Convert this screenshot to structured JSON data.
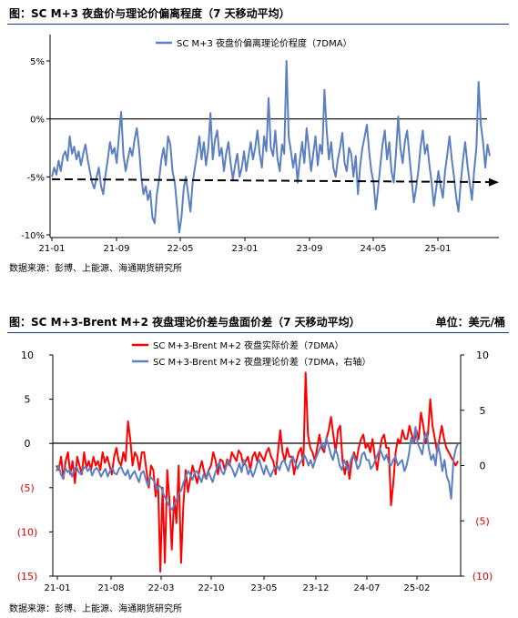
{
  "chart_data": [
    {
      "type": "line",
      "title": "图：SC M+3 夜盘价与理论价偏离程度（7 天移动平均）",
      "source": "数据来源：彭博、上能源、海通期货研究所",
      "series": [
        {
          "name": "SC M+3 夜盘价偏离理论价程度（7DMA）",
          "color": "#5b7fc0",
          "values": [
            -5.0,
            -4.2,
            -4.8,
            -3.6,
            -4.5,
            -3.2,
            -2.8,
            -3.6,
            -1.5,
            -3.0,
            -2.4,
            -3.5,
            -2.8,
            -4.0,
            -3.0,
            -2.2,
            -3.5,
            -4.5,
            -5.5,
            -6.0,
            -5.0,
            -4.2,
            -5.8,
            -6.5,
            -4.8,
            -3.5,
            -2.0,
            -3.0,
            -2.5,
            -3.8,
            -1.5,
            0.6,
            -3.0,
            -4.5,
            -3.5,
            -2.5,
            -3.2,
            -1.8,
            -0.8,
            -2.5,
            -5.0,
            -6.5,
            -5.8,
            -7.0,
            -6.2,
            -8.5,
            -9.0,
            -6.5,
            -5.2,
            -3.5,
            -2.5,
            -4.0,
            -1.5,
            -2.2,
            -4.5,
            -5.5,
            -7.5,
            -9.8,
            -8.5,
            -6.0,
            -5.0,
            -6.5,
            -8.0,
            -5.5,
            -4.2,
            -3.0,
            -1.5,
            -3.5,
            -2.0,
            -4.0,
            -2.5,
            0.5,
            -3.5,
            -1.8,
            -1.0,
            -3.2,
            -2.5,
            -4.5,
            -3.0,
            -2.0,
            -3.8,
            -5.2,
            -4.0,
            -3.0,
            -5.0,
            -4.2,
            -2.8,
            -4.5,
            -3.2,
            -2.0,
            -3.5,
            -2.5,
            -1.0,
            -3.0,
            -4.2,
            -1.5,
            -2.8,
            1.8,
            -2.5,
            -3.2,
            -1.0,
            -3.5,
            -4.5,
            -2.2,
            -3.0,
            5.0,
            -1.5,
            -2.8,
            -4.2,
            -3.0,
            -5.5,
            -3.5,
            -2.0,
            -3.8,
            -0.8,
            -2.5,
            -4.5,
            -3.0,
            -1.5,
            -4.0,
            -2.2,
            -3.0,
            2.5,
            -1.0,
            -3.5,
            -2.0,
            -4.2,
            -5.0,
            -3.5,
            -2.5,
            -1.2,
            -3.8,
            -4.5,
            -2.5,
            -3.0,
            -5.0,
            -3.2,
            -6.5,
            -4.0,
            -2.5,
            -1.5,
            -0.5,
            -2.8,
            -4.5,
            -5.5,
            -7.8,
            -6.0,
            -4.0,
            -2.2,
            -1.0,
            -3.5,
            -2.0,
            -4.5,
            -5.5,
            -3.0,
            0.2,
            -2.5,
            -3.8,
            -2.0,
            -1.0,
            -3.2,
            -5.2,
            -7.2,
            -6.0,
            -4.5,
            -2.5,
            -1.0,
            -3.0,
            -2.2,
            -4.0,
            -5.5,
            -7.5,
            -6.0,
            -4.5,
            -5.8,
            -6.8,
            -4.5,
            -3.0,
            -1.5,
            -3.5,
            -5.0,
            -6.8,
            -8.0,
            -5.5,
            -3.5,
            -2.0,
            -4.0,
            -5.5,
            -7.0,
            -4.5,
            -2.5,
            3.2,
            -0.5,
            -2.0,
            -4.2,
            -2.2,
            -3.2
          ]
        },
        {
          "name": "",
          "color": "#000000",
          "dash": true,
          "values": [
            -5.2,
            -5.45
          ]
        }
      ],
      "x_ticks": [
        "21-01",
        "21-09",
        "22-05",
        "23-01",
        "23-09",
        "24-05",
        "25-01"
      ],
      "ylim": [
        -10,
        5
      ],
      "y_ticks": [
        "-10%",
        "-5%",
        "0%",
        "5%"
      ]
    },
    {
      "type": "line",
      "title": "图：SC M+3-Brent M+2 夜盘理论价差与盘面价差（7 天移动平均）",
      "unit": "单位：美元/桶",
      "source": "数据来源：彭博、上能源、海通期货研究所",
      "series": [
        {
          "name": "SC M+3-Brent M+2 夜盘实际价差（7DMA）",
          "color": "#ff0000",
          "axis": "left",
          "values": [
            -2.5,
            -3.0,
            -1.5,
            -4.0,
            -2.0,
            -1.0,
            -3.5,
            -2.0,
            -4.5,
            -1.5,
            -2.5,
            -3.5,
            -1.0,
            -2.8,
            -2.0,
            -3.0,
            -1.5,
            -2.5,
            -2.0,
            -3.0,
            -1.0,
            -2.2,
            -1.5,
            -2.5,
            -3.5,
            -1.5,
            -0.5,
            -2.0,
            -2.5,
            -1.0,
            -2.0,
            2.5,
            0.5,
            -2.5,
            -1.0,
            -1.5,
            -3.0,
            -1.0,
            -1.0,
            -3.0,
            -5.0,
            -2.5,
            -3.0,
            -6.0,
            -4.0,
            -14.5,
            -5.0,
            -13.5,
            -3.0,
            -6.5,
            -12.0,
            -6.0,
            -9.0,
            -2.5,
            -13.5,
            -7.0,
            -3.0,
            -5.5,
            -4.0,
            -2.5,
            -3.5,
            -4.5,
            -3.0,
            -2.0,
            -3.2,
            -4.0,
            -3.0,
            -2.5,
            -1.0,
            -2.0,
            -3.5,
            -1.8,
            -2.0,
            -3.0,
            -1.8,
            -2.5,
            -1.0,
            -1.5,
            -2.0,
            -0.8,
            -1.2,
            -2.5,
            -2.0,
            -1.5,
            -3.0,
            -1.5,
            -1.0,
            -2.0,
            -1.0,
            -1.5,
            -2.0,
            -1.0,
            -0.5,
            -1.5,
            -2.0,
            -3.5,
            -1.0,
            1.5,
            -1.0,
            -2.0,
            -0.5,
            -1.5,
            -1.5,
            -3.5,
            -2.0,
            -1.0,
            -0.5,
            -2.5,
            8.0,
            1.0,
            -0.5,
            -1.0,
            -2.0,
            -0.5,
            1.0,
            -0.5,
            -1.0,
            0.5,
            1.5,
            3.0,
            1.0,
            -1.0,
            1.5,
            2.0,
            -2.0,
            -3.5,
            -2.0,
            -4.0,
            -2.0,
            -1.0,
            -2.0,
            -0.5,
            0.5,
            1.0,
            -0.5,
            0.0,
            -1.0,
            0.5,
            -1.5,
            -3.0,
            -1.0,
            0.5,
            1.0,
            -0.5,
            -0.5,
            -7.0,
            -4.5,
            -1.0,
            0.5,
            0.0,
            1.5,
            0.5,
            0.5,
            2.0,
            1.0,
            0.0,
            1.5,
            0.5,
            3.5,
            2.0,
            0.0,
            1.0,
            5.0,
            2.0,
            0.5,
            -1.0,
            0.5,
            2.0,
            0.5,
            -0.5,
            -1.0,
            -1.5,
            -2.0,
            -2.5,
            -2.0
          ]
        },
        {
          "name": "SC M+3-Brent M+2 夜盘理论价差（7DMA，右轴）",
          "color": "#5b7fc0",
          "axis": "right",
          "values": [
            -0.5,
            0.0,
            -0.8,
            -1.2,
            -0.2,
            -0.6,
            -0.4,
            -1.0,
            -0.3,
            -0.1,
            -0.6,
            -0.8,
            -0.3,
            -0.1,
            -0.5,
            -0.2,
            -0.9,
            -0.4,
            -0.2,
            -0.5,
            -1.0,
            -0.6,
            -0.3,
            -1.0,
            -0.5,
            -0.2,
            -0.7,
            -0.8,
            -0.3,
            -0.1,
            -0.6,
            -0.9,
            -0.4,
            -1.2,
            -0.8,
            -0.5,
            -1.0,
            -1.5,
            -0.7,
            -0.5,
            -1.2,
            -1.8,
            -1.0,
            -1.2,
            -1.5,
            -2.2,
            -1.8,
            -2.0,
            -2.6,
            -3.0,
            -3.5,
            -3.8,
            -4.0,
            -3.4,
            -3.0,
            -2.5,
            -2.2,
            -1.5,
            -1.0,
            -0.5,
            -0.8,
            -1.3,
            -0.6,
            -0.5,
            -1.0,
            -1.5,
            -0.8,
            -1.2,
            -0.5,
            -1.0,
            -1.5,
            -0.8,
            -0.2,
            0.3,
            -0.5,
            -0.8,
            -0.2,
            0.5,
            0.0,
            -0.4,
            -1.0,
            -0.5,
            0.2,
            -0.6,
            0.5,
            0.0,
            -0.8,
            -0.3,
            -1.0,
            -0.5,
            0.2,
            0.5,
            -0.2,
            -0.8,
            0.0,
            -0.6,
            -1.0,
            -0.5,
            -0.2,
            0.0,
            -0.4,
            0.3,
            0.5,
            0.0,
            -0.5,
            0.4,
            0.8,
            0.3,
            -0.3,
            0.2,
            0.5,
            1.0,
            0.6,
            0.0,
            0.5,
            -0.2,
            0.5,
            1.0,
            1.5,
            2.0,
            1.5,
            2.5,
            1.8,
            1.0,
            0.5,
            1.5,
            1.0,
            0.0,
            -0.4,
            0.5,
            0.0,
            -0.5,
            0.5,
            1.0,
            0.5,
            -0.3,
            0.0,
            1.0,
            1.2,
            0.5,
            0.5,
            -0.3,
            0.0,
            0.5,
            1.0,
            1.5,
            1.0,
            0.5,
            1.0,
            0.2,
            0.0,
            0.5,
            0.8,
            0.0,
            0.3,
            0.5,
            -0.5,
            0.0,
            1.0,
            2.5,
            2.0,
            3.5,
            2.0,
            1.5,
            1.0,
            2.5,
            3.0,
            1.5,
            0.5,
            1.0,
            0.0,
            2.0,
            1.0,
            -0.5,
            0.5,
            -1.0,
            -1.5,
            -3.0,
            0.5,
            1.5,
            2.0
          ]
        }
      ],
      "x_ticks": [
        "21-01",
        "21-08",
        "22-03",
        "22-10",
        "23-05",
        "23-12",
        "24-07",
        "25-02"
      ],
      "ylim_left": [
        -15,
        10
      ],
      "y_ticks_left": [
        {
          "label": "10",
          "v": 10
        },
        {
          "label": "5",
          "v": 5
        },
        {
          "label": "0",
          "v": 0
        },
        {
          "label": "(5)",
          "v": -5
        },
        {
          "label": "(10)",
          "v": -10
        },
        {
          "label": "(15)",
          "v": -15
        }
      ],
      "ylim_right": [
        -10,
        10
      ],
      "y_ticks_right": [
        {
          "label": "10",
          "v": 10
        },
        {
          "label": "5",
          "v": 5
        },
        {
          "label": "0",
          "v": 0
        },
        {
          "label": "(5)",
          "v": -5
        },
        {
          "label": "(10)",
          "v": -10
        }
      ]
    }
  ]
}
